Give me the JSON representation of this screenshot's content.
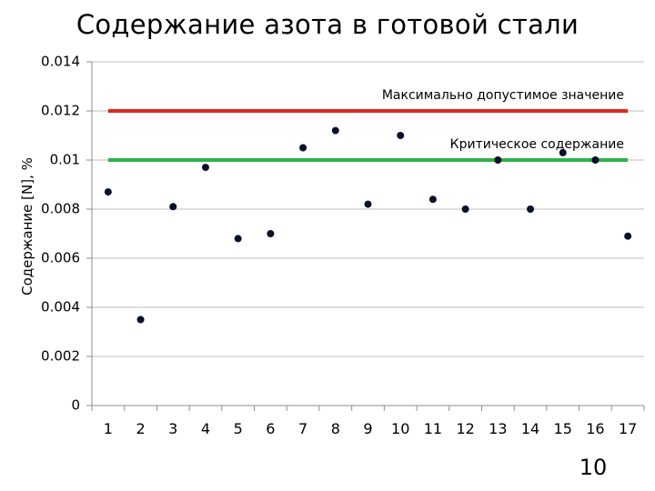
{
  "slide": {
    "title": "Содержание азота  в готовой стали",
    "page_number": "10"
  },
  "chart_data": {
    "type": "scatter",
    "title": "Содержание азота  в готовой стали",
    "xlabel": "",
    "ylabel": "Содержание [N], %",
    "x": [
      1,
      2,
      3,
      4,
      5,
      6,
      7,
      8,
      9,
      10,
      11,
      12,
      13,
      14,
      15,
      16,
      17
    ],
    "y": [
      0.0087,
      0.0035,
      0.0081,
      0.0097,
      0.0068,
      0.007,
      0.0105,
      0.0112,
      0.0082,
      0.011,
      0.0084,
      0.008,
      0.01,
      0.008,
      0.0103,
      0.01,
      0.0069
    ],
    "ylim": [
      0,
      0.014
    ],
    "y_ticks": [
      "0",
      "0.002",
      "0.004",
      "0.006",
      "0.008",
      "0.01",
      "0.012",
      "0.014"
    ],
    "x_ticks": [
      "1",
      "2",
      "3",
      "4",
      "5",
      "6",
      "7",
      "8",
      "9",
      "10",
      "11",
      "12",
      "13",
      "14",
      "15",
      "16",
      "17"
    ],
    "grid": true,
    "legend": "none",
    "marker_color": "#0a0f2a",
    "reference_lines": [
      {
        "label": "Максимально допустимое значение",
        "y": 0.012,
        "color": "#d92a1c"
      },
      {
        "label": "Критическое содержание",
        "y": 0.01,
        "color": "#2eb34a"
      }
    ]
  }
}
